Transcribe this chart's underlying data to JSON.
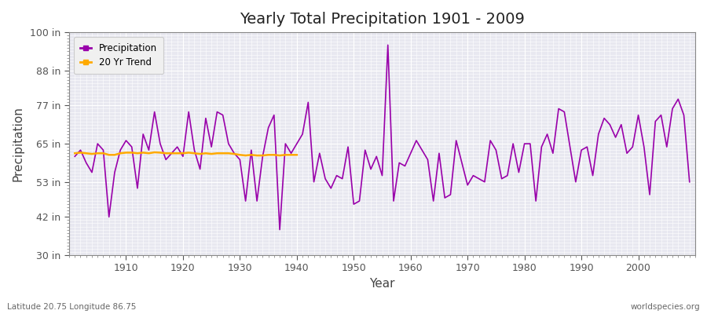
{
  "title": "Yearly Total Precipitation 1901 - 2009",
  "xlabel": "Year",
  "ylabel": "Precipitation",
  "subtitle_left": "Latitude 20.75 Longitude 86.75",
  "subtitle_right": "worldspecies.org",
  "ylim": [
    30,
    100
  ],
  "xlim": [
    1900,
    2010
  ],
  "yticks": [
    30,
    42,
    53,
    65,
    77,
    88,
    100
  ],
  "ytick_labels": [
    "30 in",
    "42 in",
    "53 in",
    "65 in",
    "77 in",
    "88 in",
    "100 in"
  ],
  "xticks": [
    1910,
    1920,
    1930,
    1940,
    1950,
    1960,
    1970,
    1980,
    1990,
    2000
  ],
  "precip_color": "#9900aa",
  "trend_color": "#ffaa00",
  "plot_bg": "#e8e8f0",
  "fig_bg": "#ffffff",
  "grid_color": "#ffffff",
  "years": [
    1901,
    1902,
    1903,
    1904,
    1905,
    1906,
    1907,
    1908,
    1909,
    1910,
    1911,
    1912,
    1913,
    1914,
    1915,
    1916,
    1917,
    1918,
    1919,
    1920,
    1921,
    1922,
    1923,
    1924,
    1925,
    1926,
    1927,
    1928,
    1929,
    1930,
    1931,
    1932,
    1933,
    1934,
    1935,
    1936,
    1937,
    1938,
    1939,
    1940,
    1941,
    1942,
    1943,
    1944,
    1945,
    1946,
    1947,
    1948,
    1949,
    1950,
    1951,
    1952,
    1953,
    1954,
    1955,
    1956,
    1957,
    1958,
    1959,
    1960,
    1961,
    1962,
    1963,
    1964,
    1965,
    1966,
    1967,
    1968,
    1969,
    1970,
    1971,
    1972,
    1973,
    1974,
    1975,
    1976,
    1977,
    1978,
    1979,
    1980,
    1981,
    1982,
    1983,
    1984,
    1985,
    1986,
    1987,
    1988,
    1989,
    1990,
    1991,
    1992,
    1993,
    1994,
    1995,
    1996,
    1997,
    1998,
    1999,
    2000,
    2001,
    2002,
    2003,
    2004,
    2005,
    2006,
    2007,
    2008,
    2009
  ],
  "precip": [
    61,
    63,
    59,
    56,
    65,
    63,
    42,
    56,
    63,
    66,
    64,
    51,
    68,
    63,
    75,
    65,
    60,
    62,
    64,
    61,
    75,
    63,
    57,
    73,
    64,
    75,
    74,
    65,
    62,
    60,
    47,
    63,
    47,
    61,
    70,
    74,
    38,
    65,
    62,
    65,
    68,
    78,
    53,
    62,
    54,
    51,
    55,
    54,
    64,
    46,
    47,
    63,
    57,
    61,
    55,
    96,
    47,
    59,
    58,
    62,
    66,
    63,
    60,
    47,
    62,
    48,
    49,
    66,
    59,
    52,
    55,
    54,
    53,
    66,
    63,
    54,
    55,
    65,
    56,
    65,
    65,
    47,
    64,
    68,
    62,
    76,
    75,
    64,
    53,
    63,
    64,
    55,
    68,
    73,
    71,
    67,
    71,
    62,
    64,
    74,
    64,
    49,
    72,
    74,
    64,
    76,
    79,
    74,
    53
  ],
  "trend_years": [
    1901,
    1902,
    1903,
    1904,
    1905,
    1906,
    1907,
    1908,
    1909,
    1910,
    1911,
    1912,
    1913,
    1914,
    1915,
    1916,
    1917,
    1918,
    1919,
    1920,
    1921,
    1922,
    1923,
    1924,
    1925,
    1926,
    1927,
    1928,
    1929,
    1930,
    1931,
    1932,
    1933,
    1934,
    1935,
    1936,
    1937,
    1938,
    1939,
    1940
  ],
  "trend": [
    62.0,
    62.2,
    62.0,
    61.8,
    62.0,
    62.0,
    61.5,
    61.5,
    62.0,
    62.2,
    62.2,
    62.0,
    62.2,
    62.0,
    62.3,
    62.2,
    62.0,
    62.0,
    62.0,
    62.0,
    62.2,
    62.0,
    61.8,
    62.0,
    61.8,
    62.0,
    62.0,
    62.0,
    61.8,
    61.5,
    61.3,
    61.5,
    61.3,
    61.3,
    61.5,
    61.5,
    61.3,
    61.5,
    61.5,
    61.5
  ]
}
